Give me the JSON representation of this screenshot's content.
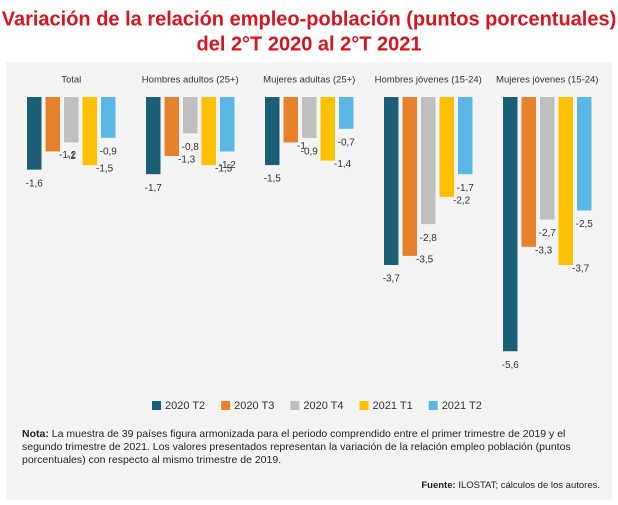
{
  "chart_data": {
    "type": "bar",
    "title": [
      "Variación de la relación empleo-población (puntos porcentuales)",
      "del 2°T 2020 al 2°T 2021"
    ],
    "categories": [
      "Total",
      "Hombres adultos (25+)",
      "Mujeres adultas (25+)",
      "Hombres jóvenes (15-24)",
      "Mujeres jóvenes (15-24)"
    ],
    "series": [
      {
        "name": "2020 T2",
        "color": "#1b5e78",
        "values": [
          -1.6,
          -1.7,
          -1.5,
          -3.7,
          -5.6
        ],
        "value_labels": [
          "-1,6",
          "-1,7",
          "-1,5",
          "-3,7",
          "-5,6"
        ]
      },
      {
        "name": "2020 T3",
        "color": "#e8822a",
        "values": [
          -1.2,
          -1.3,
          -1,
          -3.5,
          -3.3
        ],
        "value_labels": [
          "-1,2",
          "-1,3",
          "-1",
          "-3,5",
          "-3,3"
        ]
      },
      {
        "name": "2020 T4",
        "color": "#bfbfbf",
        "values": [
          -1,
          -0.8,
          -0.9,
          -2.8,
          -2.7
        ],
        "value_labels": [
          "-1",
          "-0,8",
          "-0,9",
          "-2,8",
          "-2,7"
        ]
      },
      {
        "name": "2021 T1",
        "color": "#ffc000",
        "values": [
          -1.5,
          -1.5,
          -1.4,
          -2.2,
          -3.7
        ],
        "value_labels": [
          "-1,5",
          "-1,5",
          "-1,4",
          "-2,2",
          "-3,7"
        ]
      },
      {
        "name": "2021 T2",
        "color": "#5bb7e5",
        "values": [
          -0.9,
          -1.2,
          -0.7,
          -1.7,
          -2.5
        ],
        "value_labels": [
          "-0,9",
          "-1,2",
          "-0,7",
          "-1,7",
          "-2,5"
        ]
      }
    ],
    "note_label": "Nota:",
    "note": "La muestra de 39 países figura armonizada para el periodo comprendido entre el primer trimestre de 2019 y el segundo trimestre de 2021. Los valores presentados representan la variación de la relación empleo población (puntos porcentuales) con respecto al mismo trimestre de 2019.",
    "source_label": "Fuente:",
    "source": "ILOSTAT; cálculos de los autores."
  }
}
